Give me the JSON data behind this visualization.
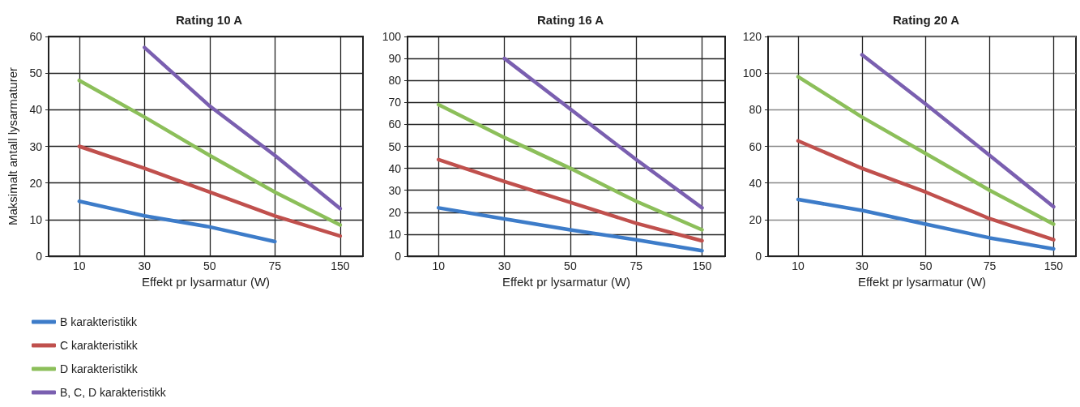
{
  "chart_data": [
    {
      "type": "line",
      "title": "Rating 10 A",
      "xlabel": "Effekt pr lysarmatur (W)",
      "ylabel": "Maksimalt antall lysarmaturer",
      "categories": [
        "10",
        "30",
        "50",
        "75",
        "150"
      ],
      "ylim": [
        0,
        60
      ],
      "yticks": [
        0,
        10,
        20,
        30,
        40,
        50,
        60
      ],
      "grid": true,
      "legend": "bottom left",
      "marker": "none",
      "line_style": "solid",
      "series": [
        {
          "name": "B karakteristikk",
          "color": "#3d7cc9",
          "values": [
            15,
            11,
            8,
            4,
            null
          ]
        },
        {
          "name": "C karakteristikk",
          "color": "#c0504d",
          "values": [
            30,
            24,
            17.5,
            11,
            5.5
          ]
        },
        {
          "name": "D karakteristikk",
          "color": "#8cbf5a",
          "values": [
            48,
            38,
            27.5,
            17.5,
            8.5
          ]
        },
        {
          "name": "B, C, D karakteristikk",
          "color": "#7a5fb0",
          "values": [
            null,
            57,
            41,
            27.5,
            13
          ]
        }
      ]
    },
    {
      "type": "line",
      "title": "Rating 16 A",
      "xlabel": "Effekt pr lysarmatur (W)",
      "categories": [
        "10",
        "30",
        "50",
        "75",
        "150"
      ],
      "ylim": [
        0,
        100
      ],
      "yticks": [
        0,
        10,
        20,
        30,
        40,
        50,
        60,
        70,
        80,
        90,
        100
      ],
      "grid": true,
      "marker": "none",
      "line_style": "solid",
      "series": [
        {
          "color": "#3d7cc9",
          "values": [
            22,
            17,
            12,
            7.5,
            2.5
          ]
        },
        {
          "color": "#c0504d",
          "values": [
            44,
            34,
            24.5,
            15,
            7
          ]
        },
        {
          "color": "#8cbf5a",
          "values": [
            69,
            54,
            40,
            25,
            12
          ]
        },
        {
          "color": "#7a5fb0",
          "values": [
            null,
            90,
            67,
            44,
            22
          ]
        }
      ]
    },
    {
      "type": "line",
      "title": "Rating 20 A",
      "xlabel": "Effekt pr lysarmatur (W)",
      "categories": [
        "10",
        "30",
        "50",
        "75",
        "150"
      ],
      "ylim": [
        0,
        120
      ],
      "yticks": [
        0,
        20,
        40,
        60,
        80,
        100,
        120
      ],
      "grid": true,
      "marker": "none",
      "line_style": "solid",
      "series": [
        {
          "color": "#3d7cc9",
          "values": [
            31,
            25,
            17.5,
            10,
            4
          ]
        },
        {
          "color": "#c0504d",
          "values": [
            63,
            48,
            35,
            20.5,
            9
          ]
        },
        {
          "color": "#8cbf5a",
          "values": [
            98,
            76,
            56,
            36,
            17.5
          ]
        },
        {
          "color": "#7a5fb0",
          "values": [
            null,
            110,
            83,
            55,
            27
          ]
        }
      ]
    }
  ]
}
